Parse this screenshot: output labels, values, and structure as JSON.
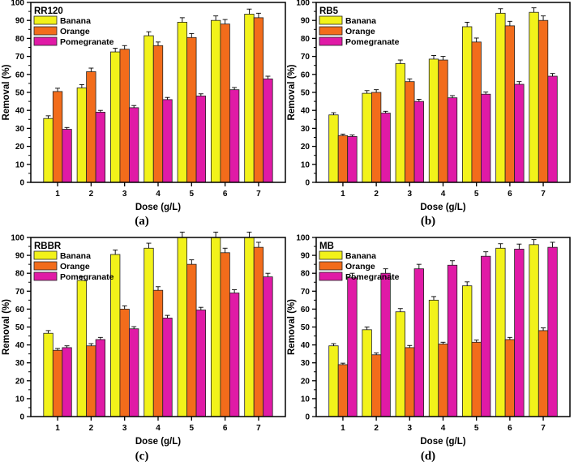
{
  "figure": {
    "legend": [
      "Banana",
      "Orange",
      "Pomegranate"
    ],
    "colors": {
      "Banana": "#f2f21a",
      "Orange": "#f26c1b",
      "Pomegranate": "#e01aa6"
    },
    "xlabel": "Dose (g/L)",
    "ylabel": "Removal (%)"
  },
  "chart_data": [
    {
      "type": "bar",
      "title": "RR120",
      "panel": "(a)",
      "categories": [
        "1",
        "2",
        "3",
        "4",
        "5",
        "6",
        "7"
      ],
      "series": [
        {
          "name": "Banana",
          "values": [
            35.5,
            52.5,
            72.5,
            81.5,
            89,
            90,
            93.5
          ],
          "errors": [
            1.5,
            1.8,
            2,
            2.2,
            2.5,
            2.5,
            2.8
          ]
        },
        {
          "name": "Orange",
          "values": [
            50.5,
            61.5,
            74,
            76,
            80.5,
            88,
            91.5
          ],
          "errors": [
            1.8,
            2,
            2,
            2,
            2.2,
            2.5,
            2.5
          ]
        },
        {
          "name": "Pomegranate",
          "values": [
            29.5,
            39,
            41.5,
            46,
            48,
            51.5,
            57.5
          ],
          "errors": [
            1,
            1,
            1.2,
            1.2,
            1.2,
            1.2,
            1.5
          ]
        }
      ],
      "xlabel": "Dose (g/L)",
      "ylabel": "Removal (%)",
      "ylim": [
        0,
        100
      ],
      "yticks": [
        0,
        10,
        20,
        30,
        40,
        50,
        60,
        70,
        80,
        90,
        100
      ],
      "legend_position": "top-left"
    },
    {
      "type": "bar",
      "title": "RB5",
      "panel": "(b)",
      "categories": [
        "1",
        "2",
        "3",
        "4",
        "5",
        "6",
        "7"
      ],
      "series": [
        {
          "name": "Banana",
          "values": [
            37.5,
            49.5,
            66,
            68.5,
            86.5,
            94,
            94.5
          ],
          "errors": [
            1.2,
            1.5,
            2,
            2,
            2.5,
            2.5,
            2.5
          ]
        },
        {
          "name": "Orange",
          "values": [
            26,
            50,
            56,
            68,
            78,
            87,
            90
          ],
          "errors": [
            0.8,
            1.5,
            1.5,
            2,
            2.2,
            2.5,
            2.5
          ]
        },
        {
          "name": "Pomegranate",
          "values": [
            25.5,
            38.5,
            45,
            47,
            49,
            54.5,
            59
          ],
          "errors": [
            0.8,
            1,
            1.2,
            1.2,
            1.2,
            1.5,
            1.5
          ]
        }
      ],
      "xlabel": "Dose (g/L)",
      "ylabel": "Removal (%)",
      "ylim": [
        0,
        100
      ],
      "yticks": [
        0,
        10,
        20,
        30,
        40,
        50,
        60,
        70,
        80,
        90,
        100
      ],
      "legend_position": "top-left"
    },
    {
      "type": "bar",
      "title": "RBBR",
      "panel": "(c)",
      "categories": [
        "1",
        "2",
        "3",
        "4",
        "5",
        "6",
        "7"
      ],
      "series": [
        {
          "name": "Banana",
          "values": [
            46.5,
            76,
            90.5,
            94,
            100,
            100,
            100
          ],
          "errors": [
            1.5,
            2.2,
            2.5,
            2.8,
            3,
            3,
            3
          ]
        },
        {
          "name": "Orange",
          "values": [
            37,
            39.5,
            60,
            70.5,
            85,
            91.5,
            94.5
          ],
          "errors": [
            1,
            1.2,
            1.8,
            2,
            2.5,
            2.5,
            2.8
          ]
        },
        {
          "name": "Pomegranate",
          "values": [
            38.5,
            43,
            49,
            55,
            59.5,
            69,
            78
          ],
          "errors": [
            1,
            1.2,
            1.2,
            1.5,
            1.5,
            1.8,
            2
          ]
        }
      ],
      "xlabel": "Dose (g/L)",
      "ylabel": "Removal (%)",
      "ylim": [
        0,
        100
      ],
      "yticks": [
        0,
        10,
        20,
        30,
        40,
        50,
        60,
        70,
        80,
        90,
        100
      ],
      "legend_position": "top-left"
    },
    {
      "type": "bar",
      "title": "MB",
      "panel": "(d)",
      "categories": [
        "1",
        "2",
        "3",
        "4",
        "5",
        "6",
        "7"
      ],
      "series": [
        {
          "name": "Banana",
          "values": [
            39.5,
            48.5,
            58.5,
            65,
            73,
            94,
            96
          ],
          "errors": [
            1.2,
            1.5,
            1.8,
            2,
            2.2,
            2.5,
            2.8
          ]
        },
        {
          "name": "Orange",
          "values": [
            29,
            34.5,
            38.5,
            40.5,
            41.5,
            43,
            48
          ],
          "errors": [
            0.8,
            1,
            1.2,
            1,
            1.2,
            1.2,
            1.5
          ]
        },
        {
          "name": "Pomegranate",
          "values": [
            77.5,
            80,
            82.5,
            84.5,
            89.5,
            93.5,
            94.5
          ],
          "errors": [
            2.5,
            2.5,
            2.5,
            2.5,
            2.5,
            2.8,
            2.8
          ]
        }
      ],
      "xlabel": "Dose (g/L)",
      "ylabel": "Removal (%)",
      "ylim": [
        0,
        100
      ],
      "yticks": [
        0,
        10,
        20,
        30,
        40,
        50,
        60,
        70,
        80,
        90,
        100
      ],
      "legend_position": "top-left"
    }
  ]
}
